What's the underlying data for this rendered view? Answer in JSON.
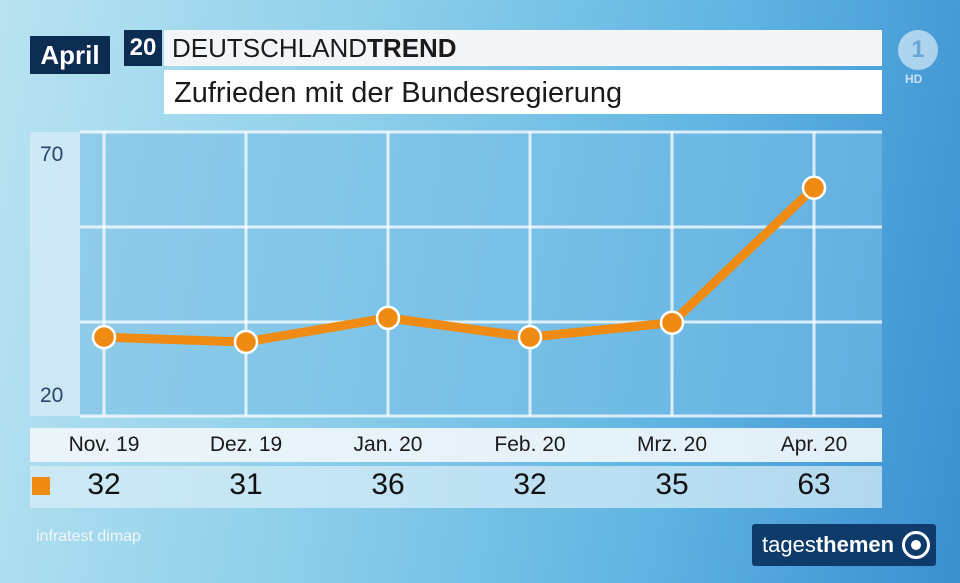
{
  "header": {
    "month": "April",
    "year": "20",
    "series_prefix": "DEUTSCHLAND",
    "series_suffix": "TREND",
    "subtitle": "Zufrieden mit der Bundesregierung"
  },
  "chart_data": {
    "type": "line",
    "categories": [
      "Nov. 19",
      "Dez. 19",
      "Jan. 20",
      "Feb. 20",
      "Mrz. 20",
      "Apr. 20"
    ],
    "values": [
      32,
      31,
      36,
      32,
      35,
      63
    ],
    "y_ticks": [
      "70",
      "20"
    ],
    "ylim": [
      17,
      73
    ],
    "grid": true,
    "color": "#ef8a13"
  },
  "footer": {
    "source": "infratest dimap",
    "brand_part1": "tages",
    "brand_part2": "themen"
  },
  "channel": {
    "logo": "1",
    "badge": "HD"
  }
}
